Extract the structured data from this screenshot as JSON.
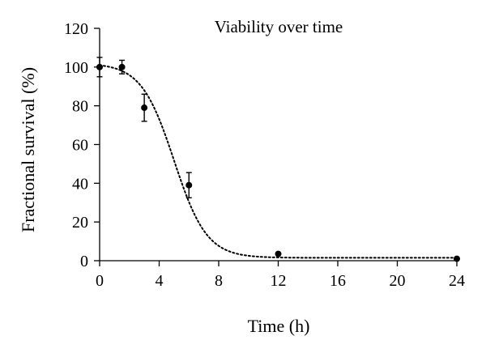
{
  "chart_data": {
    "type": "scatter",
    "title": "Viability over time",
    "xlabel": "Time (h)",
    "ylabel": "Fractional survival (%)",
    "xlim": [
      0,
      24
    ],
    "ylim": [
      0,
      120
    ],
    "x_ticks": [
      0,
      4,
      8,
      12,
      16,
      20,
      24
    ],
    "y_ticks": [
      0,
      20,
      40,
      60,
      80,
      100,
      120
    ],
    "grid": false,
    "legend": "none",
    "series": [
      {
        "points": [
          {
            "x": 0,
            "y": 100,
            "err": 5
          },
          {
            "x": 1.5,
            "y": 100,
            "err": 3.5
          },
          {
            "x": 3,
            "y": 79,
            "err": 7
          },
          {
            "x": 6,
            "y": 39,
            "err": 6.5
          },
          {
            "x": 12,
            "y": 3.5,
            "err": 0
          },
          {
            "x": 24,
            "y": 1,
            "err": 0
          }
        ]
      }
    ],
    "fit_curve": {
      "style": "dotted",
      "model": "sigmoid",
      "top": 102,
      "bottom": 1.5,
      "midpoint": 5.0,
      "scale": 1.1
    },
    "colors": {
      "marker": "#000000",
      "curve": "#000000",
      "axis": "#000000"
    }
  }
}
